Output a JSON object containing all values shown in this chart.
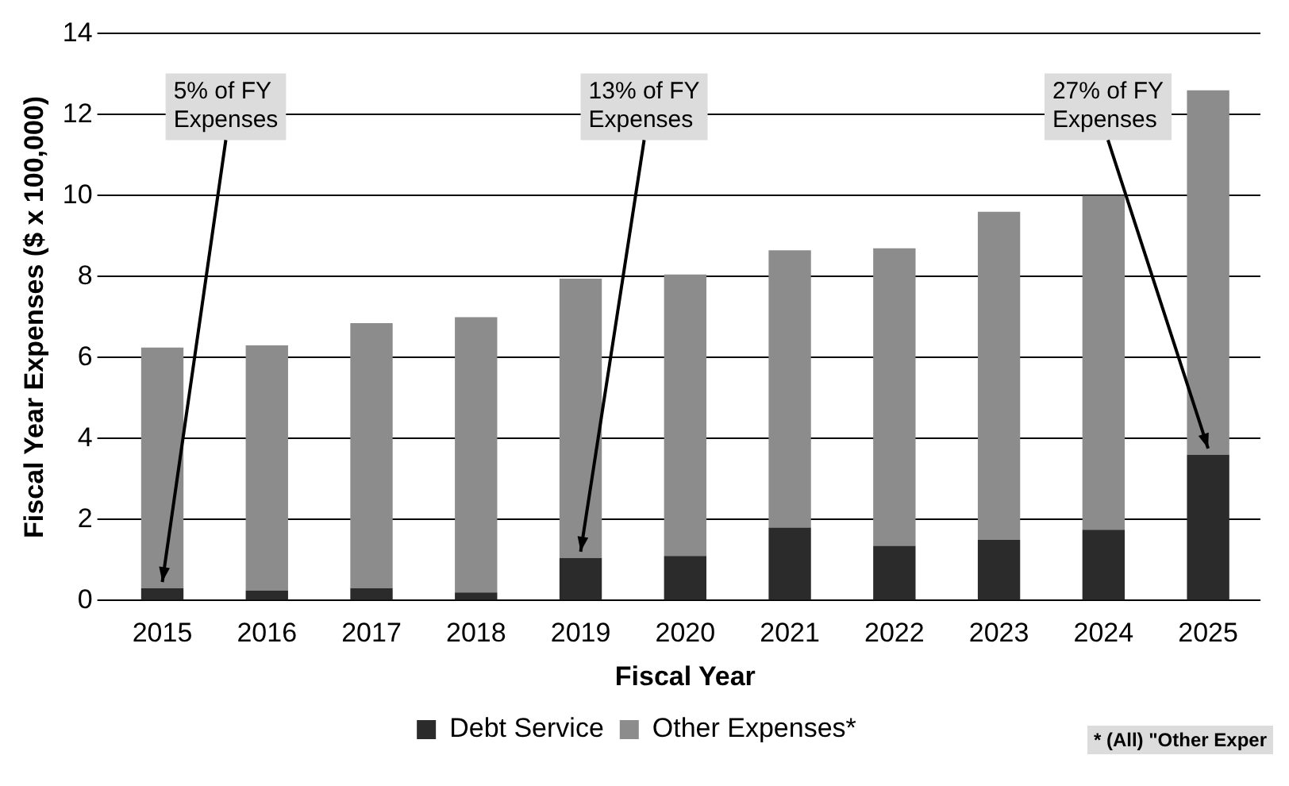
{
  "chart_data": {
    "type": "bar",
    "stacked": true,
    "xlabel": "Fiscal Year",
    "ylabel": "Fiscal Year Expenses ($ x 100,000)",
    "categories": [
      "2015",
      "2016",
      "2017",
      "2018",
      "2019",
      "2020",
      "2021",
      "2022",
      "2023",
      "2024",
      "2025"
    ],
    "series": [
      {
        "name": "Debt Service",
        "color": "#2b2b2b",
        "values": [
          0.3,
          0.25,
          0.3,
          0.2,
          1.05,
          1.1,
          1.8,
          1.35,
          1.5,
          1.75,
          3.6
        ]
      },
      {
        "name": "Other Expenses*",
        "color": "#8c8c8c",
        "values": [
          5.95,
          6.05,
          6.55,
          6.8,
          6.9,
          6.95,
          6.85,
          7.35,
          8.1,
          8.25,
          9.0
        ]
      }
    ],
    "ylim": [
      0,
      14
    ],
    "yticks": [
      0,
      2,
      4,
      6,
      8,
      10,
      12,
      14
    ],
    "grid": "y",
    "legend": "bottom",
    "annotations": [
      {
        "text": "5% of FY\nExpenses",
        "x": "2015",
        "y": 0.3
      },
      {
        "text": "13% of FY\nExpenses",
        "x": "2019",
        "y": 1.05
      },
      {
        "text": "27% of FY\nExpenses",
        "x": "2025",
        "y": 3.6
      },
      "* (All) \"Other Exper"
    ]
  }
}
